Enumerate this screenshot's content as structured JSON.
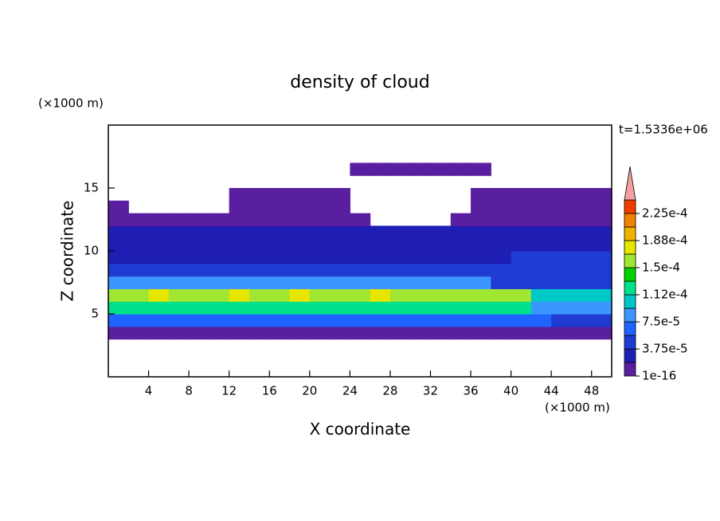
{
  "chart_data": {
    "type": "contour",
    "title": "density of cloud",
    "xlabel": "X coordinate",
    "ylabel": "Z coordinate",
    "xunit": "(×1000 m)",
    "yunit": "(×1000 m)",
    "time_label": "t=1.5336e+06",
    "xlim": [
      0,
      50
    ],
    "ylim": [
      0,
      20
    ],
    "xticks": [
      4,
      8,
      12,
      16,
      20,
      24,
      28,
      32,
      36,
      40,
      44,
      48
    ],
    "yticks": [
      5,
      10,
      15
    ],
    "x": [
      1,
      3,
      5,
      7,
      9,
      11,
      13,
      15,
      17,
      19,
      21,
      23,
      25,
      27,
      29,
      31,
      33,
      35,
      37,
      39,
      41,
      43,
      45,
      47,
      49
    ],
    "y": [
      3.5,
      4.5,
      5.5,
      6.5,
      7.5,
      8.5,
      9.5,
      10.5,
      11.5,
      12.5,
      13.5,
      14.5,
      15.5,
      16.5
    ],
    "z": [
      [
        5e-06,
        5e-06,
        5e-06,
        5e-06,
        5e-06,
        5e-06,
        5e-06,
        5e-06,
        5e-06,
        5e-06,
        5e-06,
        5e-06,
        5e-06,
        5e-06,
        5e-06,
        5e-06,
        5e-06,
        5e-06,
        5e-06,
        5e-06,
        5e-06,
        5e-06,
        5e-06,
        5e-06,
        5e-06
      ],
      [
        6e-05,
        6e-05,
        6e-05,
        6e-05,
        6e-05,
        6e-05,
        6e-05,
        6e-05,
        6e-05,
        6e-05,
        6e-05,
        6e-05,
        6e-05,
        6e-05,
        6e-05,
        6e-05,
        6e-05,
        6e-05,
        6e-05,
        6e-05,
        6e-05,
        6e-05,
        4e-05,
        4e-05,
        4e-05
      ],
      [
        0.00012,
        0.00012,
        0.00012,
        0.00012,
        0.00012,
        0.00012,
        0.00012,
        0.00012,
        0.00012,
        0.00012,
        0.00012,
        0.00012,
        0.00012,
        0.00012,
        0.00012,
        0.00012,
        0.00012,
        0.00012,
        0.00012,
        0.00012,
        0.00012,
        9e-05,
        9e-05,
        9e-05,
        9e-05
      ],
      [
        0.00016,
        0.00016,
        0.000175,
        0.00016,
        0.00016,
        0.00016,
        0.000175,
        0.00016,
        0.00016,
        0.000175,
        0.00016,
        0.00016,
        0.00016,
        0.000175,
        0.00016,
        0.00016,
        0.00016,
        0.00016,
        0.00016,
        0.00016,
        0.00016,
        0.0001,
        0.0001,
        0.0001,
        0.0001
      ],
      [
        8e-05,
        8e-05,
        8e-05,
        8e-05,
        8e-05,
        8e-05,
        8e-05,
        8e-05,
        8e-05,
        8e-05,
        8e-05,
        8e-05,
        8e-05,
        8e-05,
        8e-05,
        8e-05,
        8e-05,
        8e-05,
        8e-05,
        5e-05,
        5e-05,
        5e-05,
        5e-05,
        5e-05,
        5e-05
      ],
      [
        4e-05,
        4e-05,
        4e-05,
        4e-05,
        4e-05,
        4e-05,
        4e-05,
        4e-05,
        4e-05,
        4e-05,
        4e-05,
        4e-05,
        4e-05,
        4e-05,
        4e-05,
        4e-05,
        4e-05,
        4e-05,
        4e-05,
        4e-05,
        4e-05,
        4e-05,
        4e-05,
        4e-05,
        4e-05
      ],
      [
        3e-05,
        3e-05,
        3e-05,
        3e-05,
        3e-05,
        3e-05,
        3e-05,
        3e-05,
        3e-05,
        3e-05,
        3e-05,
        3e-05,
        3e-05,
        3e-05,
        3e-05,
        3e-05,
        3e-05,
        3e-05,
        3e-05,
        3e-05,
        5e-05,
        5e-05,
        5e-05,
        5e-05,
        5e-05
      ],
      [
        2.5e-05,
        2.5e-05,
        2.5e-05,
        2.5e-05,
        2.5e-05,
        2.5e-05,
        2.5e-05,
        2.5e-05,
        2.5e-05,
        2.5e-05,
        2.5e-05,
        2.5e-05,
        2.5e-05,
        2.5e-05,
        2.5e-05,
        2.5e-05,
        2.5e-05,
        2.5e-05,
        2.5e-05,
        2.5e-05,
        2.5e-05,
        2.5e-05,
        2.5e-05,
        2.5e-05,
        2.5e-05
      ],
      [
        2e-05,
        2e-05,
        2e-05,
        2e-05,
        2e-05,
        2e-05,
        2e-05,
        2e-05,
        2e-05,
        2e-05,
        2e-05,
        2e-05,
        2e-05,
        2e-05,
        2e-05,
        2e-05,
        2e-05,
        2e-05,
        2e-05,
        2e-05,
        2e-05,
        2e-05,
        2e-05,
        2e-05,
        2e-05
      ],
      [
        1e-05,
        1e-05,
        1e-05,
        1e-05,
        1e-05,
        1e-05,
        1e-05,
        1e-05,
        1e-05,
        1e-05,
        1e-05,
        1e-05,
        5e-06,
        0,
        0,
        0,
        0,
        1e-05,
        1e-05,
        1e-05,
        1e-05,
        1e-05,
        1e-05,
        1e-05,
        1e-05
      ],
      [
        5e-06,
        0,
        0,
        0,
        0,
        0,
        5e-06,
        5e-06,
        5e-06,
        5e-06,
        5e-06,
        5e-06,
        0,
        0,
        0,
        0,
        0,
        0,
        5e-06,
        5e-06,
        5e-06,
        5e-06,
        5e-06,
        5e-06,
        5e-06
      ],
      [
        0,
        0,
        0,
        0,
        0,
        0,
        5e-06,
        5e-06,
        5e-06,
        5e-06,
        5e-06,
        5e-06,
        0,
        0,
        0,
        0,
        0,
        0,
        5e-06,
        5e-06,
        5e-06,
        5e-06,
        5e-06,
        5e-06,
        5e-06
      ],
      [
        0,
        0,
        0,
        0,
        0,
        0,
        0,
        0,
        0,
        0,
        0,
        0,
        0,
        0,
        0,
        0,
        0,
        0,
        0,
        0,
        0,
        0,
        0,
        0,
        0
      ],
      [
        0,
        0,
        0,
        0,
        0,
        0,
        0,
        0,
        0,
        0,
        0,
        0,
        5e-06,
        5e-06,
        5e-06,
        5e-06,
        5e-06,
        5e-06,
        5e-06,
        0,
        0,
        0,
        0,
        0,
        0
      ]
    ],
    "levels": [
      1e-16,
      1.875e-05,
      3.75e-05,
      5.625e-05,
      7.5e-05,
      9.375e-05,
      0.0001125,
      0.00013125,
      0.00015,
      0.00016875,
      0.0001875,
      0.00020625,
      0.000225,
      0.00024375
    ],
    "colors": [
      "#5a1fa0",
      "#1e1eb4",
      "#1e3cd2",
      "#1f64ff",
      "#3c96ff",
      "#00c8c8",
      "#00e18c",
      "#00d200",
      "#a0e632",
      "#e6e600",
      "#f0b400",
      "#f08200",
      "#f03c00"
    ],
    "over_color": "#f4a0a0",
    "colorbar_ticks": [
      {
        "value": 1e-16,
        "label": "1e-16"
      },
      {
        "value": 3.75e-05,
        "label": "3.75e-5"
      },
      {
        "value": 7.5e-05,
        "label": "7.5e-5"
      },
      {
        "value": 0.0001125,
        "label": "1.12e-4"
      },
      {
        "value": 0.00015,
        "label": "1.5e-4"
      },
      {
        "value": 0.0001875,
        "label": "1.88e-4"
      },
      {
        "value": 0.000225,
        "label": "2.25e-4"
      }
    ]
  }
}
